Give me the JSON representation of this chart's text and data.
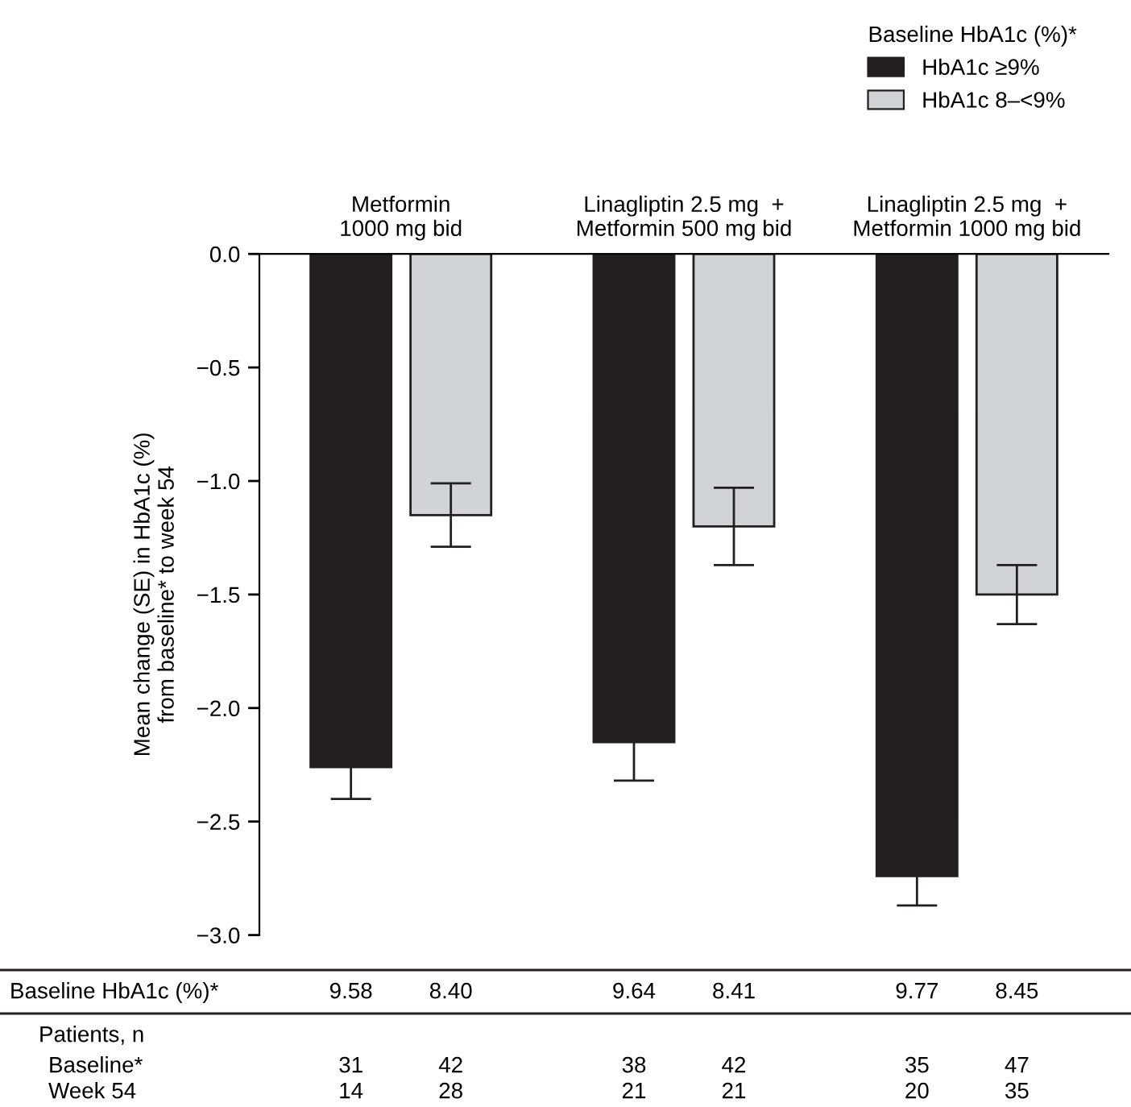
{
  "chart_data": {
    "type": "bar",
    "ylabel": "Mean change (SE) in HbA1c (%)\nfrom baseline* to week 54",
    "legend_title": "Baseline HbA1c (%)*",
    "categories": [
      "Metformin\n1000 mg bid",
      "Linagliptin 2.5 mg  +\nMetformin 500 mg bid",
      "Linagliptin 2.5 mg  +\nMetformin 1000 mg bid"
    ],
    "series": [
      {
        "name": "HbA1c ≥9%",
        "color": "#231f20",
        "values": [
          -2.26,
          -2.15,
          -2.74
        ],
        "errors": [
          0.14,
          0.17,
          0.13
        ]
      },
      {
        "name": "HbA1c 8–<9%",
        "color": "#d1d3d4",
        "values": [
          -1.15,
          -1.2,
          -1.5
        ],
        "errors": [
          0.14,
          0.17,
          0.13
        ]
      }
    ],
    "ylim": [
      -3.0,
      0.0
    ],
    "yticks": [
      {
        "value": 0.0,
        "label": "0.0"
      },
      {
        "value": -0.5,
        "label": "−0.5"
      },
      {
        "value": -1.0,
        "label": "−1.0"
      },
      {
        "value": -1.5,
        "label": "−1.5"
      },
      {
        "value": -2.0,
        "label": "−2.0"
      },
      {
        "value": -2.5,
        "label": "−2.5"
      },
      {
        "value": -3.0,
        "label": "−3.0"
      }
    ],
    "grid": false,
    "legend": "top right",
    "annotations": [
      "Baseline HbA1c (%)*",
      "9.58",
      "8.40",
      "9.64",
      "8.41",
      "9.77",
      "8.45",
      "Patients, n",
      "Baseline*",
      "31",
      "42",
      "38",
      "42",
      "35",
      "47",
      "Week 54",
      "14",
      "28",
      "21",
      "21",
      "20",
      "35"
    ]
  }
}
